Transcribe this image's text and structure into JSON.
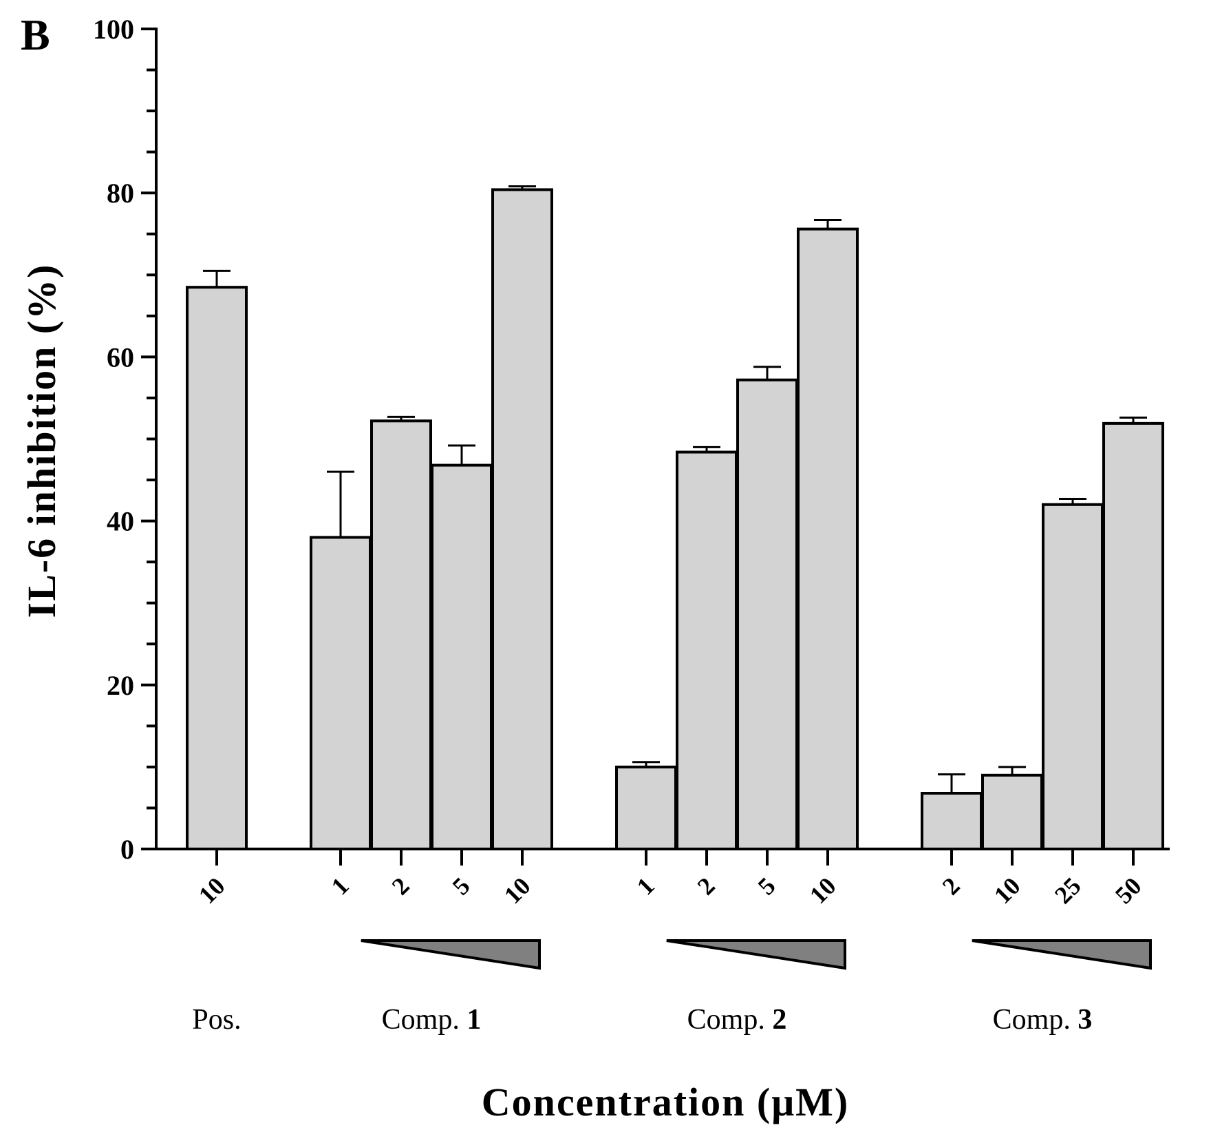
{
  "chart_data": {
    "type": "bar",
    "panel_label": "B",
    "ylabel": "IL-6 inhibition (%)",
    "xlabel": "Concentration (μM)",
    "ylim": [
      0,
      100
    ],
    "yticks": [
      0,
      20,
      40,
      60,
      80,
      100
    ],
    "bar_color": "#d3d3d3",
    "ramp_color": "#808080",
    "groups": [
      {
        "label": "Pos.",
        "label_number": "",
        "has_ramp": false,
        "bars": [
          {
            "concentration": "10",
            "value": 68.5,
            "error": 2.0
          }
        ]
      },
      {
        "label": "Comp.",
        "label_number": "1",
        "has_ramp": true,
        "bars": [
          {
            "concentration": "1",
            "value": 38.0,
            "error": 8.0
          },
          {
            "concentration": "2",
            "value": 52.2,
            "error": 0.5
          },
          {
            "concentration": "5",
            "value": 46.8,
            "error": 2.4
          },
          {
            "concentration": "10",
            "value": 80.4,
            "error": 0.4
          }
        ]
      },
      {
        "label": "Comp.",
        "label_number": "2",
        "has_ramp": true,
        "bars": [
          {
            "concentration": "1",
            "value": 10.0,
            "error": 0.6
          },
          {
            "concentration": "2",
            "value": 48.4,
            "error": 0.6
          },
          {
            "concentration": "5",
            "value": 57.2,
            "error": 1.6
          },
          {
            "concentration": "10",
            "value": 75.6,
            "error": 1.1
          }
        ]
      },
      {
        "label": "Comp.",
        "label_number": "3",
        "has_ramp": true,
        "bars": [
          {
            "concentration": "2",
            "value": 6.8,
            "error": 2.3
          },
          {
            "concentration": "10",
            "value": 9.0,
            "error": 1.0
          },
          {
            "concentration": "25",
            "value": 42.0,
            "error": 0.7
          },
          {
            "concentration": "50",
            "value": 51.9,
            "error": 0.7
          }
        ]
      }
    ]
  }
}
